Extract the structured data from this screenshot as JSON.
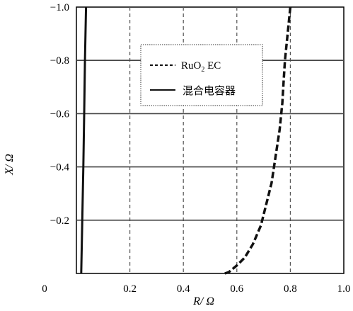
{
  "chart_data": {
    "type": "line",
    "title": "",
    "xlabel": "R/ Ω",
    "ylabel": "X/ Ω",
    "xlim": [
      0,
      1.0
    ],
    "ylim": [
      0,
      -1.0
    ],
    "x_ticks": [
      "0",
      "0.2",
      "0.4",
      "0.6",
      "0.8",
      "1.0"
    ],
    "y_ticks": [
      "−0.2",
      "−0.4",
      "−0.6",
      "−0.8",
      "−1.0"
    ],
    "grid": true,
    "legend_position": "top-center",
    "series": [
      {
        "name": "RuO2 EC",
        "name_base": "RuO",
        "name_sub": "2",
        "name_suffix": " EC",
        "style": "dashed",
        "color": "#111111",
        "points": [
          [
            0.555,
            0.0
          ],
          [
            0.57,
            -0.005
          ],
          [
            0.6,
            -0.03
          ],
          [
            0.63,
            -0.06
          ],
          [
            0.66,
            -0.11
          ],
          [
            0.69,
            -0.18
          ],
          [
            0.71,
            -0.26
          ],
          [
            0.73,
            -0.34
          ],
          [
            0.745,
            -0.44
          ],
          [
            0.76,
            -0.54
          ],
          [
            0.77,
            -0.64
          ],
          [
            0.775,
            -0.72
          ],
          [
            0.78,
            -0.8
          ],
          [
            0.79,
            -0.9
          ],
          [
            0.8,
            -1.0
          ]
        ]
      },
      {
        "name": "混合电容器",
        "style": "solid",
        "color": "#111111",
        "points": [
          [
            0.018,
            0.0
          ],
          [
            0.022,
            -0.2
          ],
          [
            0.026,
            -0.4
          ],
          [
            0.029,
            -0.6
          ],
          [
            0.032,
            -0.8
          ],
          [
            0.036,
            -1.0
          ]
        ]
      }
    ]
  }
}
